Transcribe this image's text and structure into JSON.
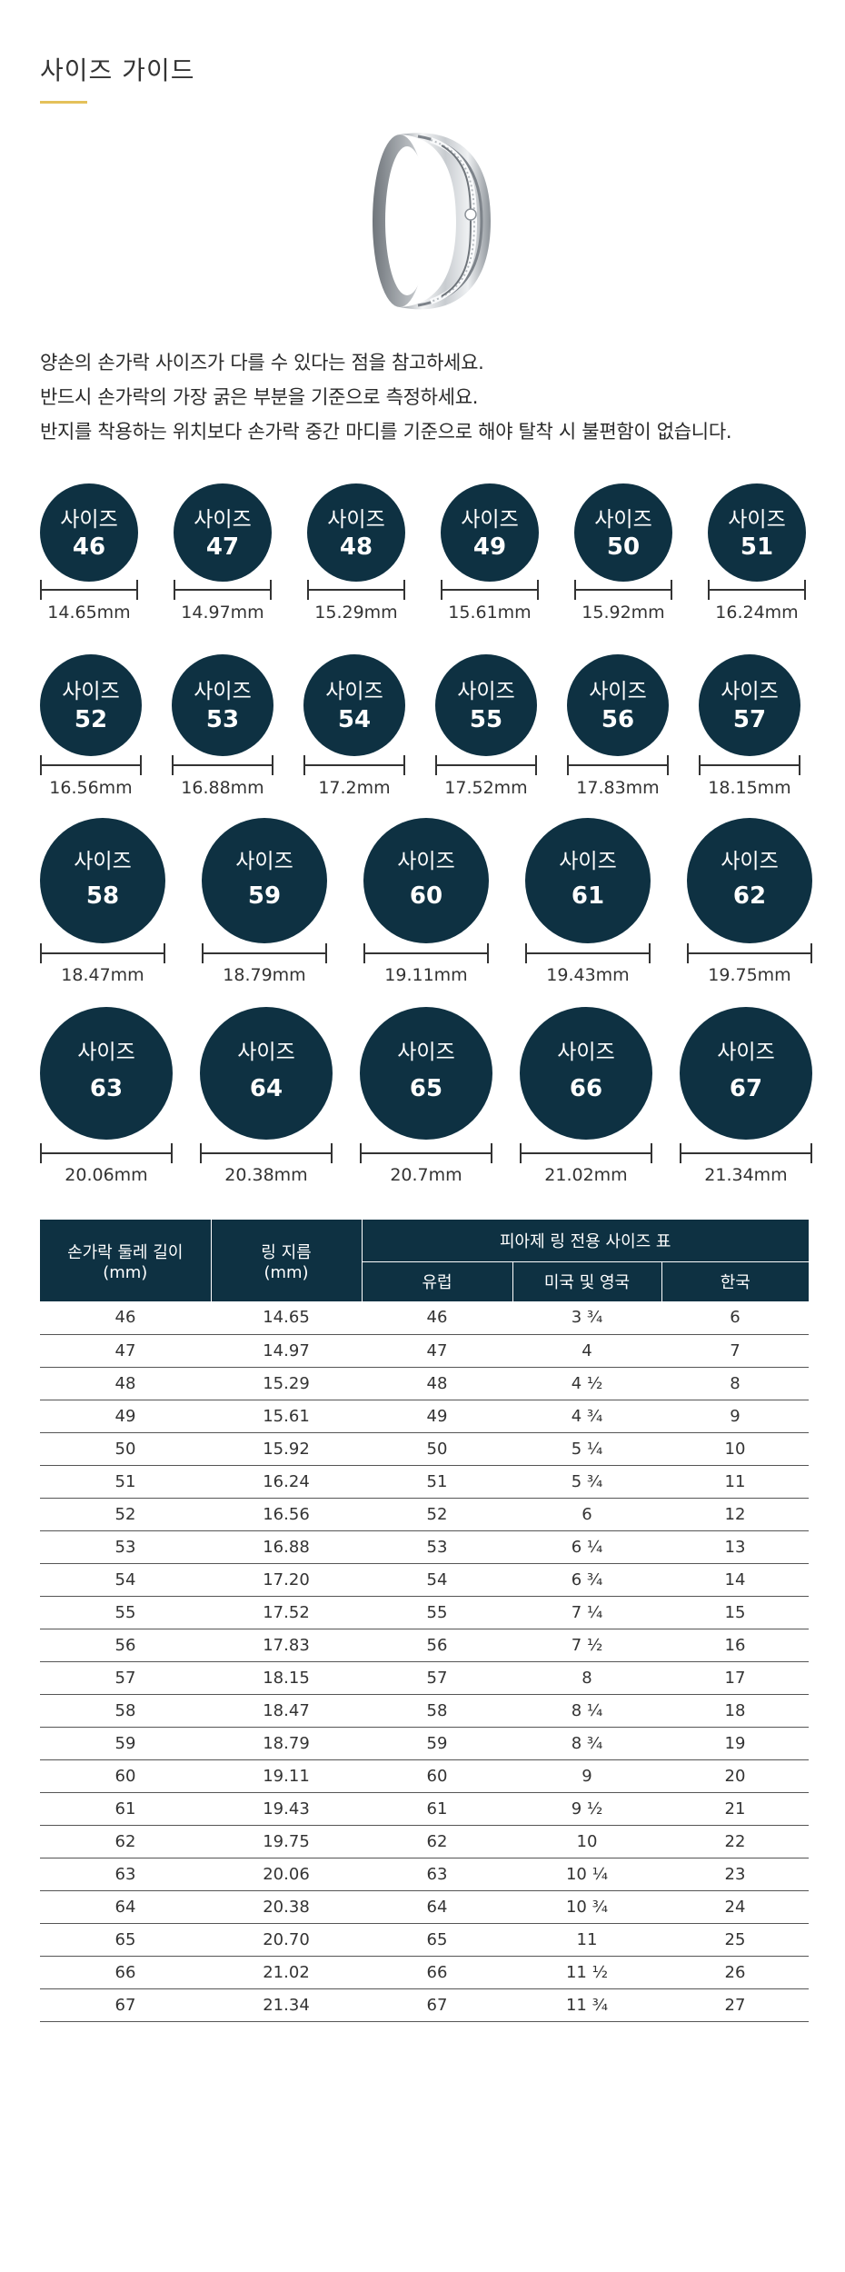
{
  "page": {
    "title": "사이즈 가이드"
  },
  "intro": [
    "양손의 손가락 사이즈가 다를 수 있다는 점을 참고하세요.",
    "반드시 손가락의 가장 굵은 부분을 기준으로 측정하세요.",
    "반지를 착용하는 위치보다 손가락 중간 마디를 기준으로 해야 탈착 시 불편함이 없습니다."
  ],
  "size_label": "사이즈",
  "sizes": [
    {
      "size": "46",
      "mm": "14.65mm"
    },
    {
      "size": "47",
      "mm": "14.97mm"
    },
    {
      "size": "48",
      "mm": "15.29mm"
    },
    {
      "size": "49",
      "mm": "15.61mm"
    },
    {
      "size": "50",
      "mm": "15.92mm"
    },
    {
      "size": "51",
      "mm": "16.24mm"
    },
    {
      "size": "52",
      "mm": "16.56mm"
    },
    {
      "size": "53",
      "mm": "16.88mm"
    },
    {
      "size": "54",
      "mm": "17.2mm"
    },
    {
      "size": "55",
      "mm": "17.52mm"
    },
    {
      "size": "56",
      "mm": "17.83mm"
    },
    {
      "size": "57",
      "mm": "18.15mm"
    },
    {
      "size": "58",
      "mm": "18.47mm"
    },
    {
      "size": "59",
      "mm": "18.79mm"
    },
    {
      "size": "60",
      "mm": "19.11mm"
    },
    {
      "size": "61",
      "mm": "19.43mm"
    },
    {
      "size": "62",
      "mm": "19.75mm"
    },
    {
      "size": "63",
      "mm": "20.06mm"
    },
    {
      "size": "64",
      "mm": "20.38mm"
    },
    {
      "size": "65",
      "mm": "20.7mm"
    },
    {
      "size": "66",
      "mm": "21.02mm"
    },
    {
      "size": "67",
      "mm": "21.34mm"
    }
  ],
  "table": {
    "col_circumference": "손가락 둘레 길이",
    "col_circumference_unit": "(mm)",
    "col_diameter": "링 지름",
    "col_diameter_unit": "(mm)",
    "group_header": "피아제 링 전용 사이즈 표",
    "col_europe": "유럽",
    "col_us_uk": "미국 및 영국",
    "col_korea": "한국",
    "rows": [
      [
        "46",
        "14.65",
        "46",
        "3 ¾",
        "6"
      ],
      [
        "47",
        "14.97",
        "47",
        "4",
        "7"
      ],
      [
        "48",
        "15.29",
        "48",
        "4 ½",
        "8"
      ],
      [
        "49",
        "15.61",
        "49",
        "4 ¾",
        "9"
      ],
      [
        "50",
        "15.92",
        "50",
        "5 ¼",
        "10"
      ],
      [
        "51",
        "16.24",
        "51",
        "5 ¾",
        "11"
      ],
      [
        "52",
        "16.56",
        "52",
        "6",
        "12"
      ],
      [
        "53",
        "16.88",
        "53",
        "6 ¼",
        "13"
      ],
      [
        "54",
        "17.20",
        "54",
        "6 ¾",
        "14"
      ],
      [
        "55",
        "17.52",
        "55",
        "7 ¼",
        "15"
      ],
      [
        "56",
        "17.83",
        "56",
        "7 ½",
        "16"
      ],
      [
        "57",
        "18.15",
        "57",
        "8",
        "17"
      ],
      [
        "58",
        "18.47",
        "58",
        "8 ¼",
        "18"
      ],
      [
        "59",
        "18.79",
        "59",
        "8 ¾",
        "19"
      ],
      [
        "60",
        "19.11",
        "60",
        "9",
        "20"
      ],
      [
        "61",
        "19.43",
        "61",
        "9 ½",
        "21"
      ],
      [
        "62",
        "19.75",
        "62",
        "10",
        "22"
      ],
      [
        "63",
        "20.06",
        "63",
        "10 ¼",
        "23"
      ],
      [
        "64",
        "20.38",
        "64",
        "10 ¾",
        "24"
      ],
      [
        "65",
        "20.70",
        "65",
        "11",
        "25"
      ],
      [
        "66",
        "21.02",
        "66",
        "11 ½",
        "26"
      ],
      [
        "67",
        "21.34",
        "67",
        "11 ¾",
        "27"
      ]
    ]
  },
  "colors": {
    "navy": "#0e3142",
    "accent": "#e4c15a"
  }
}
